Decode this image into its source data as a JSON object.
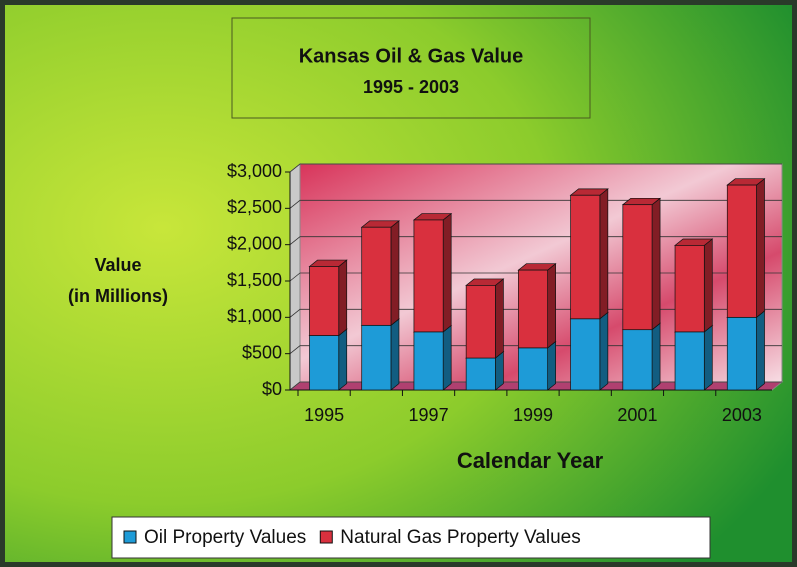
{
  "chart_data": {
    "type": "stacked_bar_3d",
    "title": "Kansas Oil & Gas Value",
    "subtitle": "1995 - 2003",
    "y_label": [
      "Value",
      "(in Millions)"
    ],
    "x_label": "Calendar Year",
    "categories": [
      "1995",
      null,
      "1997",
      null,
      "1999",
      null,
      "2001",
      null,
      "2003"
    ],
    "series": [
      {
        "name": "Oil Property Values",
        "color": "#1e9bd7",
        "values": [
          750,
          890,
          800,
          440,
          580,
          980,
          830,
          800,
          1000
        ]
      },
      {
        "name": "Natural Gas Property Values",
        "color": "#d9303e",
        "values": [
          950,
          1350,
          1540,
          1000,
          1070,
          1700,
          1720,
          1190,
          1820
        ]
      }
    ],
    "ylim": [
      0,
      3000
    ],
    "yticks": [
      {
        "value": 0,
        "label": "$0"
      },
      {
        "value": 500,
        "label": "$500"
      },
      {
        "value": 1000,
        "label": "$1,000"
      },
      {
        "value": 1500,
        "label": "$1,500"
      },
      {
        "value": 2000,
        "label": "$2,000"
      },
      {
        "value": 2500,
        "label": "$2,500"
      },
      {
        "value": 3000,
        "label": "$3,000"
      }
    ],
    "grid": true,
    "legend": "bottom"
  }
}
